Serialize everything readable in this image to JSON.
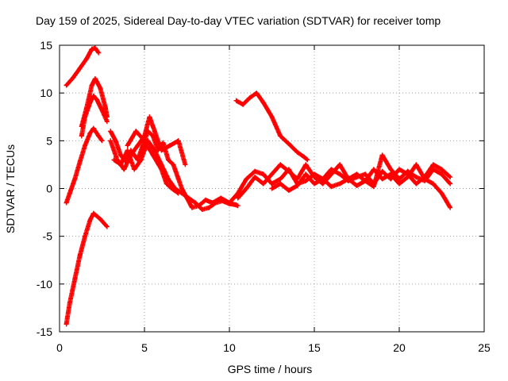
{
  "chart_data": {
    "type": "scatter",
    "title": "Day 159 of 2025, Sidereal Day-to-day VTEC variation (SDTVAR) for receiver tomp",
    "xlabel": "GPS time / hours",
    "ylabel": "SDTVAR / TECUs",
    "xlim": [
      0,
      25
    ],
    "ylim": [
      -15,
      15
    ],
    "xticks": [
      "0",
      "5",
      "10",
      "15",
      "20",
      "25"
    ],
    "yticks": [
      "-15",
      "-10",
      "-5",
      "0",
      "5",
      "10",
      "15"
    ],
    "grid": true,
    "marker": "+",
    "color": "#ff0000",
    "series": [
      {
        "name": "trace-1",
        "x": [
          0.4,
          0.8,
          1.2,
          1.6,
          1.9,
          2.1,
          2.3
        ],
        "y": [
          10.8,
          11.6,
          12.6,
          13.6,
          14.6,
          14.7,
          14.2
        ]
      },
      {
        "name": "trace-2",
        "x": [
          1.3,
          1.6,
          1.9,
          2.1,
          2.4,
          2.7,
          2.8
        ],
        "y": [
          6.5,
          8.5,
          10.8,
          11.5,
          10.5,
          8.5,
          7.5
        ]
      },
      {
        "name": "trace-3",
        "x": [
          1.3,
          1.5,
          1.8,
          2.0,
          2.2,
          2.5,
          2.8
        ],
        "y": [
          5.5,
          7.5,
          9.0,
          9.7,
          9.3,
          8.2,
          7.0
        ]
      },
      {
        "name": "trace-4",
        "x": [
          0.4,
          0.6,
          0.9,
          1.2,
          1.5,
          1.8,
          2.0,
          2.3,
          2.5
        ],
        "y": [
          -1.5,
          -0.5,
          1.0,
          2.8,
          4.5,
          5.8,
          6.3,
          5.5,
          5.0
        ]
      },
      {
        "name": "trace-5",
        "x": [
          0.4,
          0.6,
          0.9,
          1.2,
          1.5,
          1.8,
          2.0,
          2.4,
          2.8
        ],
        "y": [
          -14.2,
          -12.0,
          -9.5,
          -7.0,
          -5.0,
          -3.3,
          -2.6,
          -3.2,
          -4.0
        ]
      },
      {
        "name": "trace-6",
        "x": [
          3.0,
          3.3,
          3.6,
          3.9,
          4.2,
          4.6,
          4.9,
          5.2,
          5.5,
          5.8,
          6.1,
          6.4,
          6.7,
          7.0,
          7.2,
          7.5,
          7.8,
          8.2,
          8.6,
          9.0,
          9.5,
          10.0,
          10.5
        ],
        "y": [
          6.0,
          5.0,
          3.5,
          2.8,
          4.0,
          3.0,
          4.5,
          6.0,
          5.5,
          4.0,
          4.8,
          3.0,
          2.5,
          1.0,
          0.0,
          -1.0,
          -2.0,
          -1.8,
          -1.2,
          -1.5,
          -1.0,
          -1.5,
          -1.8
        ]
      },
      {
        "name": "trace-7",
        "x": [
          3.0,
          3.4,
          3.8,
          4.2,
          4.6,
          5.0,
          5.3,
          5.6,
          6.0,
          6.5,
          7.0,
          7.4
        ],
        "y": [
          5.0,
          3.0,
          2.0,
          3.5,
          4.5,
          5.5,
          7.5,
          6.0,
          4.0,
          4.5,
          5.0,
          2.5
        ]
      },
      {
        "name": "trace-8",
        "x": [
          3.2,
          3.6,
          4.0,
          4.4,
          4.8,
          5.2,
          5.6,
          6.0,
          6.4,
          6.8,
          7.2,
          7.6,
          8.0,
          8.4,
          8.8,
          9.2,
          9.6,
          10.0,
          10.4
        ],
        "y": [
          3.0,
          2.5,
          4.0,
          2.0,
          3.0,
          5.0,
          4.0,
          2.5,
          1.0,
          0.0,
          -0.5,
          -1.0,
          -1.5,
          -2.2,
          -2.0,
          -1.5,
          -1.3,
          -1.6,
          -1.7
        ]
      },
      {
        "name": "trace-9",
        "x": [
          4.0,
          4.5,
          5.0,
          5.5,
          6.0,
          6.3,
          6.6,
          7.0
        ],
        "y": [
          4.5,
          6.0,
          5.0,
          3.5,
          2.0,
          0.5,
          0.0,
          -0.5
        ]
      },
      {
        "name": "trace-10",
        "x": [
          10.4,
          10.8,
          11.2,
          11.6,
          12.0,
          12.5,
          13.0,
          13.6,
          14.0,
          14.4,
          14.6
        ],
        "y": [
          9.2,
          8.8,
          9.5,
          10.0,
          9.0,
          7.5,
          5.5,
          4.5,
          3.8,
          3.3,
          3.0
        ]
      },
      {
        "name": "trace-11",
        "x": [
          10.0,
          10.5,
          11.0,
          11.5,
          12.0,
          12.5,
          13.0,
          13.5,
          14.0,
          14.5,
          15.0,
          15.5,
          16.0,
          16.5,
          17.0,
          17.5,
          18.0,
          18.5,
          19.0,
          19.5,
          20.0,
          20.5,
          21.0,
          21.5,
          22.0,
          22.5,
          23.0
        ],
        "y": [
          -1.5,
          -0.5,
          1.0,
          1.8,
          1.5,
          0.5,
          1.0,
          2.0,
          0.5,
          0.8,
          1.5,
          1.0,
          2.0,
          1.5,
          0.8,
          1.2,
          1.5,
          0.5,
          1.8,
          1.0,
          2.0,
          1.5,
          0.5,
          1.2,
          2.5,
          2.0,
          1.2
        ]
      },
      {
        "name": "trace-12",
        "x": [
          10.5,
          11.0,
          11.5,
          12.0,
          12.5,
          13.0,
          13.5,
          14.0,
          14.5,
          15.0,
          15.5,
          16.0,
          16.5,
          17.0,
          17.5,
          18.0,
          18.5,
          19.0,
          19.5,
          20.0,
          20.5,
          21.0,
          21.5,
          22.0,
          22.5,
          23.0
        ],
        "y": [
          -1.0,
          0.0,
          1.2,
          0.5,
          1.5,
          2.5,
          1.8,
          1.0,
          2.5,
          1.2,
          0.5,
          1.5,
          2.5,
          1.0,
          1.5,
          0.8,
          2.0,
          1.0,
          1.5,
          0.5,
          1.2,
          2.5,
          1.0,
          0.5,
          -0.5,
          -2.0
        ]
      },
      {
        "name": "trace-13",
        "x": [
          12.5,
          13.0,
          13.5,
          14.0,
          14.5,
          15.0,
          15.5,
          16.0,
          16.5,
          17.0,
          17.5,
          18.0,
          18.5,
          19.0,
          19.5,
          20.0,
          20.5,
          21.0,
          21.5,
          22.0,
          22.5,
          23.0
        ],
        "y": [
          0.0,
          0.5,
          -0.2,
          0.3,
          1.5,
          0.5,
          1.0,
          0.2,
          0.5,
          1.0,
          0.3,
          0.8,
          0.2,
          3.5,
          2.0,
          1.0,
          1.8,
          1.2,
          0.8,
          2.0,
          1.5,
          0.5
        ]
      }
    ]
  }
}
